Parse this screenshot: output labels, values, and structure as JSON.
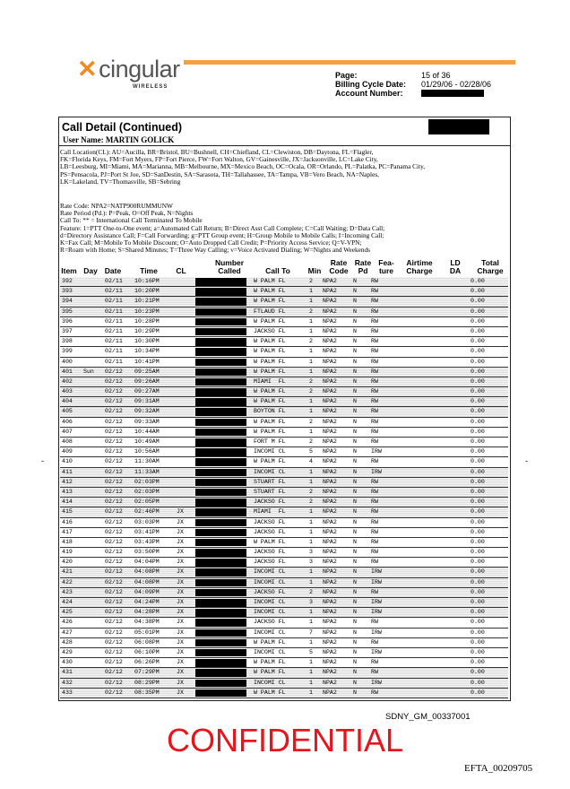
{
  "brand": {
    "name": "cingular",
    "sub": "WIRELESS",
    "accent": "#f08a24"
  },
  "info": {
    "page_label": "Page:",
    "page_value": "15 of 36",
    "cycle_label": "Billing Cycle Date:",
    "cycle_value": "01/29/06 - 02/28/06",
    "account_label": "Account Number:"
  },
  "section": {
    "title": "Call Detail (Continued)",
    "user": "User Name: MARTIN GOLICK"
  },
  "legend": [
    "Call Location(CL):  AU=Aucilla, BR=Bristol, BU=Bushnell, CH=Chiefland, CL=Clewiston, DB=Daytona, FL=Flagler,",
    "FK=Florida Keys, FM=Fort Myers, FP=Fort Pierce, FW=Fort Walton, GV=Gainesville, JX=Jacksonville, LC=Lake City,",
    "LB=Leesburg, MI=Miami, MA=Marianna, MB=Melbourne, MX=Mexico Beach, OC=Ocala, OR=Orlando, PL=Palatka, PC=Panama City,",
    "PS=Pensacola, PJ=Port St Joe, SD=SanDestin, SA=Sarasota, TH=Tallahassee, TA=Tampa, VB=Vero Beach, NA=Naples,",
    "LK=Lakeland, TV=Thomasville, SB=Sebring"
  ],
  "legend2": [
    "Rate Code: NPA2=NATP900RUMMUNW",
    "Rate Period (Pd.): P=Peak, O=Off Peak, N=Nights",
    "Call To: ** = International Call Terminated To Mobile",
    "Feature:  1=PTT One-to-One event; a=Automated Call Return; B=Direct Asst Call Complete; C=Call Waiting; D=Data Call;",
    "d=Directory Assistance Call; F=Call Forwarding; g=PTT Group event; H=Group Mobile to Mobile Calls; I=Incoming Call;",
    "K=Fax Call; M=Mobile To Mobile Discount; O=Auto Dropped Call Credit; P=Priority Access Service; Q=V-VPN;",
    "R=Roam with Home; S=Shared Minutes; T=Three Way Calling; v=Voice Activated Dialing; W=Nights and Weekends"
  ],
  "columns": [
    "Item",
    "Day",
    "Date",
    "Time",
    "CL",
    "Number Called",
    "Call To",
    "Min",
    "Rate Code",
    "Rate Pd",
    "Fea- ture",
    "Airtime Charge",
    "LD DA",
    "Total Charge"
  ],
  "rows": [
    [
      "392",
      "",
      "02/11",
      "10:16PM",
      "",
      "W PALM FL",
      "2",
      "NPA2",
      "N",
      "RW",
      "0.00"
    ],
    [
      "393",
      "",
      "02/11",
      "10:20PM",
      "",
      "W PALM FL",
      "1",
      "NPA2",
      "N",
      "RW",
      "0.00"
    ],
    [
      "394",
      "",
      "02/11",
      "10:21PM",
      "",
      "W PALM FL",
      "1",
      "NPA2",
      "N",
      "RW",
      "0.00"
    ],
    [
      "395",
      "",
      "02/11",
      "10:23PM",
      "",
      "FTLAUD FL",
      "2",
      "NPA2",
      "N",
      "RW",
      "0.00"
    ],
    [
      "396",
      "",
      "02/11",
      "10:28PM",
      "",
      "W PALM FL",
      "1",
      "NPA2",
      "N",
      "RW",
      "0.00"
    ],
    [
      "397",
      "",
      "02/11",
      "10:29PM",
      "",
      "JACKSO FL",
      "1",
      "NPA2",
      "N",
      "RW",
      "0.00"
    ],
    [
      "398",
      "",
      "02/11",
      "10:30PM",
      "",
      "W PALM FL",
      "2",
      "NPA2",
      "N",
      "RW",
      "0.00"
    ],
    [
      "399",
      "",
      "02/11",
      "10:34PM",
      "",
      "W PALM FL",
      "1",
      "NPA2",
      "N",
      "RW",
      "0.00"
    ],
    [
      "400",
      "",
      "02/11",
      "10:41PM",
      "",
      "W PALM FL",
      "1",
      "NPA2",
      "N",
      "RW",
      "0.00"
    ],
    [
      "401",
      "Sun",
      "02/12",
      "09:25AM",
      "",
      "W PALM FL",
      "1",
      "NPA2",
      "N",
      "RW",
      "0.00"
    ],
    [
      "402",
      "",
      "02/12",
      "09:26AM",
      "",
      "MIAMI  FL",
      "2",
      "NPA2",
      "N",
      "RW",
      "0.00"
    ],
    [
      "403",
      "",
      "02/12",
      "09:27AM",
      "",
      "W PALM FL",
      "2",
      "NPA2",
      "N",
      "RW",
      "0.00"
    ],
    [
      "404",
      "",
      "02/12",
      "09:31AM",
      "",
      "W PALM FL",
      "1",
      "NPA2",
      "N",
      "RW",
      "0.00"
    ],
    [
      "405",
      "",
      "02/12",
      "09:32AM",
      "",
      "BOYTON FL",
      "1",
      "NPA2",
      "N",
      "RW",
      "0.00"
    ],
    [
      "406",
      "",
      "02/12",
      "09:33AM",
      "",
      "W PALM FL",
      "2",
      "NPA2",
      "N",
      "RW",
      "0.00"
    ],
    [
      "407",
      "",
      "02/12",
      "10:44AM",
      "",
      "W PALM FL",
      "1",
      "NPA2",
      "N",
      "RW",
      "0.00"
    ],
    [
      "408",
      "",
      "02/12",
      "10:49AM",
      "",
      "FORT M FL",
      "2",
      "NPA2",
      "N",
      "RW",
      "0.00"
    ],
    [
      "409",
      "",
      "02/12",
      "10:56AM",
      "",
      "INCOMI CL",
      "5",
      "NPA2",
      "N",
      "IRW",
      "0.00"
    ],
    [
      "410",
      "",
      "02/12",
      "11:30AM",
      "",
      "W PALM FL",
      "4",
      "NPA2",
      "N",
      "RW",
      "0.00"
    ],
    [
      "411",
      "",
      "02/12",
      "11:33AM",
      "",
      "INCOMI CL",
      "1",
      "NPA2",
      "N",
      "IRW",
      "0.00"
    ],
    [
      "412",
      "",
      "02/12",
      "02:03PM",
      "",
      "STUART FL",
      "1",
      "NPA2",
      "N",
      "RW",
      "0.00"
    ],
    [
      "413",
      "",
      "02/12",
      "02:03PM",
      "",
      "STUART FL",
      "2",
      "NPA2",
      "N",
      "RW",
      "0.00"
    ],
    [
      "414",
      "",
      "02/12",
      "02:05PM",
      "",
      "JACKSO FL",
      "2",
      "NPA2",
      "N",
      "RW",
      "0.00"
    ],
    [
      "415",
      "",
      "02/12",
      "02:46PM",
      "JX",
      "MIAMI  FL",
      "1",
      "NPA2",
      "N",
      "RW",
      "0.00"
    ],
    [
      "416",
      "",
      "02/12",
      "03:03PM",
      "JX",
      "JACKSO FL",
      "1",
      "NPA2",
      "N",
      "RW",
      "0.00"
    ],
    [
      "417",
      "",
      "02/12",
      "03:41PM",
      "JX",
      "JACKSO FL",
      "1",
      "NPA2",
      "N",
      "RW",
      "0.00"
    ],
    [
      "418",
      "",
      "02/12",
      "03:43PM",
      "JX",
      "W PALM FL",
      "1",
      "NPA2",
      "N",
      "RW",
      "0.00"
    ],
    [
      "419",
      "",
      "02/12",
      "03:50PM",
      "JX",
      "JACKSO FL",
      "3",
      "NPA2",
      "N",
      "RW",
      "0.00"
    ],
    [
      "420",
      "",
      "02/12",
      "04:04PM",
      "JX",
      "JACKSO FL",
      "3",
      "NPA2",
      "N",
      "RW",
      "0.00"
    ],
    [
      "421",
      "",
      "02/12",
      "04:08PM",
      "JX",
      "INCOMI CL",
      "1",
      "NPA2",
      "N",
      "IRW",
      "0.00"
    ],
    [
      "422",
      "",
      "02/12",
      "04:08PM",
      "JX",
      "INCOMI CL",
      "1",
      "NPA2",
      "N",
      "IRW",
      "0.00"
    ],
    [
      "423",
      "",
      "02/12",
      "04:09PM",
      "JX",
      "JACKSO FL",
      "2",
      "NPA2",
      "N",
      "RW",
      "0.00"
    ],
    [
      "424",
      "",
      "02/12",
      "04:24PM",
      "JX",
      "INCOMI CL",
      "3",
      "NPA2",
      "N",
      "IRW",
      "0.00"
    ],
    [
      "425",
      "",
      "02/12",
      "04:28PM",
      "JX",
      "INCOMI CL",
      "1",
      "NPA2",
      "N",
      "IRW",
      "0.00"
    ],
    [
      "426",
      "",
      "02/12",
      "04:38PM",
      "JX",
      "JACKSO FL",
      "1",
      "NPA2",
      "N",
      "RW",
      "0.00"
    ],
    [
      "427",
      "",
      "02/12",
      "05:01PM",
      "JX",
      "INCOMI CL",
      "7",
      "NPA2",
      "N",
      "IRW",
      "0.00"
    ],
    [
      "428",
      "",
      "02/12",
      "06:08PM",
      "JX",
      "W PALM FL",
      "1",
      "NPA2",
      "N",
      "RW",
      "0.00"
    ],
    [
      "429",
      "",
      "02/12",
      "06:10PM",
      "JX",
      "INCOMI CL",
      "5",
      "NPA2",
      "N",
      "IRW",
      "0.00"
    ],
    [
      "430",
      "",
      "02/12",
      "06:26PM",
      "JX",
      "W PALM FL",
      "1",
      "NPA2",
      "N",
      "RW",
      "0.00"
    ],
    [
      "431",
      "",
      "02/12",
      "07:29PM",
      "JX",
      "W PALM FL",
      "1",
      "NPA2",
      "N",
      "RW",
      "0.00"
    ],
    [
      "432",
      "",
      "02/12",
      "08:29PM",
      "JX",
      "INCOMI CL",
      "1",
      "NPA2",
      "N",
      "IRW",
      "0.00"
    ],
    [
      "433",
      "",
      "02/12",
      "08:35PM",
      "JX",
      "W PALM FL",
      "1",
      "NPA2",
      "N",
      "RW",
      "0.00"
    ]
  ],
  "footer": {
    "confidential": "CONFIDENTIAL",
    "bates": "SDNY_GM_00337001",
    "efta": "EFTA_00209705",
    "confidential_color": "#e8141c"
  }
}
